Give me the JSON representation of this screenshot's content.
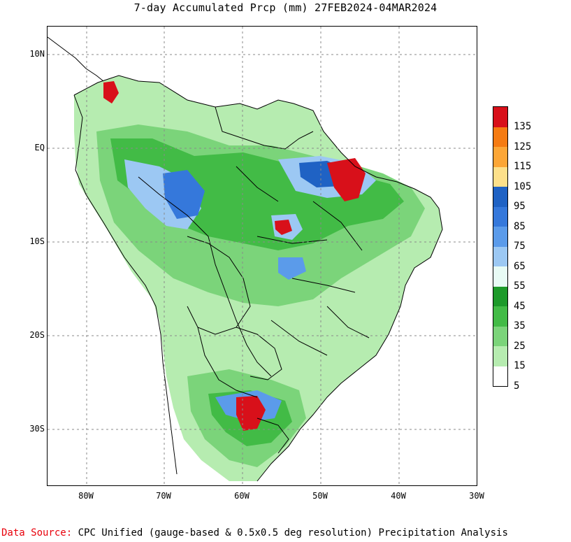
{
  "title": "7-day Accumulated Prcp (mm) 27FEB2024-04MAR2024",
  "axes": {
    "lat_labels": [
      "10N",
      "EQ",
      "10S",
      "20S",
      "30S"
    ],
    "lon_labels": [
      "80W",
      "70W",
      "60W",
      "50W",
      "40W",
      "30W"
    ]
  },
  "legend": {
    "labels": [
      "135",
      "125",
      "115",
      "105",
      "95",
      "85",
      "75",
      "65",
      "55",
      "45",
      "35",
      "25",
      "15",
      "5"
    ],
    "colors": [
      "#d8101a",
      "#f57b12",
      "#fca636",
      "#fde08a",
      "#1f62c4",
      "#3578db",
      "#5b9bea",
      "#9cc8f3",
      "#e8fbf5",
      "#1d9a2a",
      "#42bb46",
      "#7bd47a",
      "#b6ecb0",
      "#ffffff"
    ]
  },
  "footer": {
    "source_label": "Data Source:",
    "source_text": " CPC Unified (gauge-based & 0.5x0.5 deg resolution) Precipitation Analysis"
  }
}
